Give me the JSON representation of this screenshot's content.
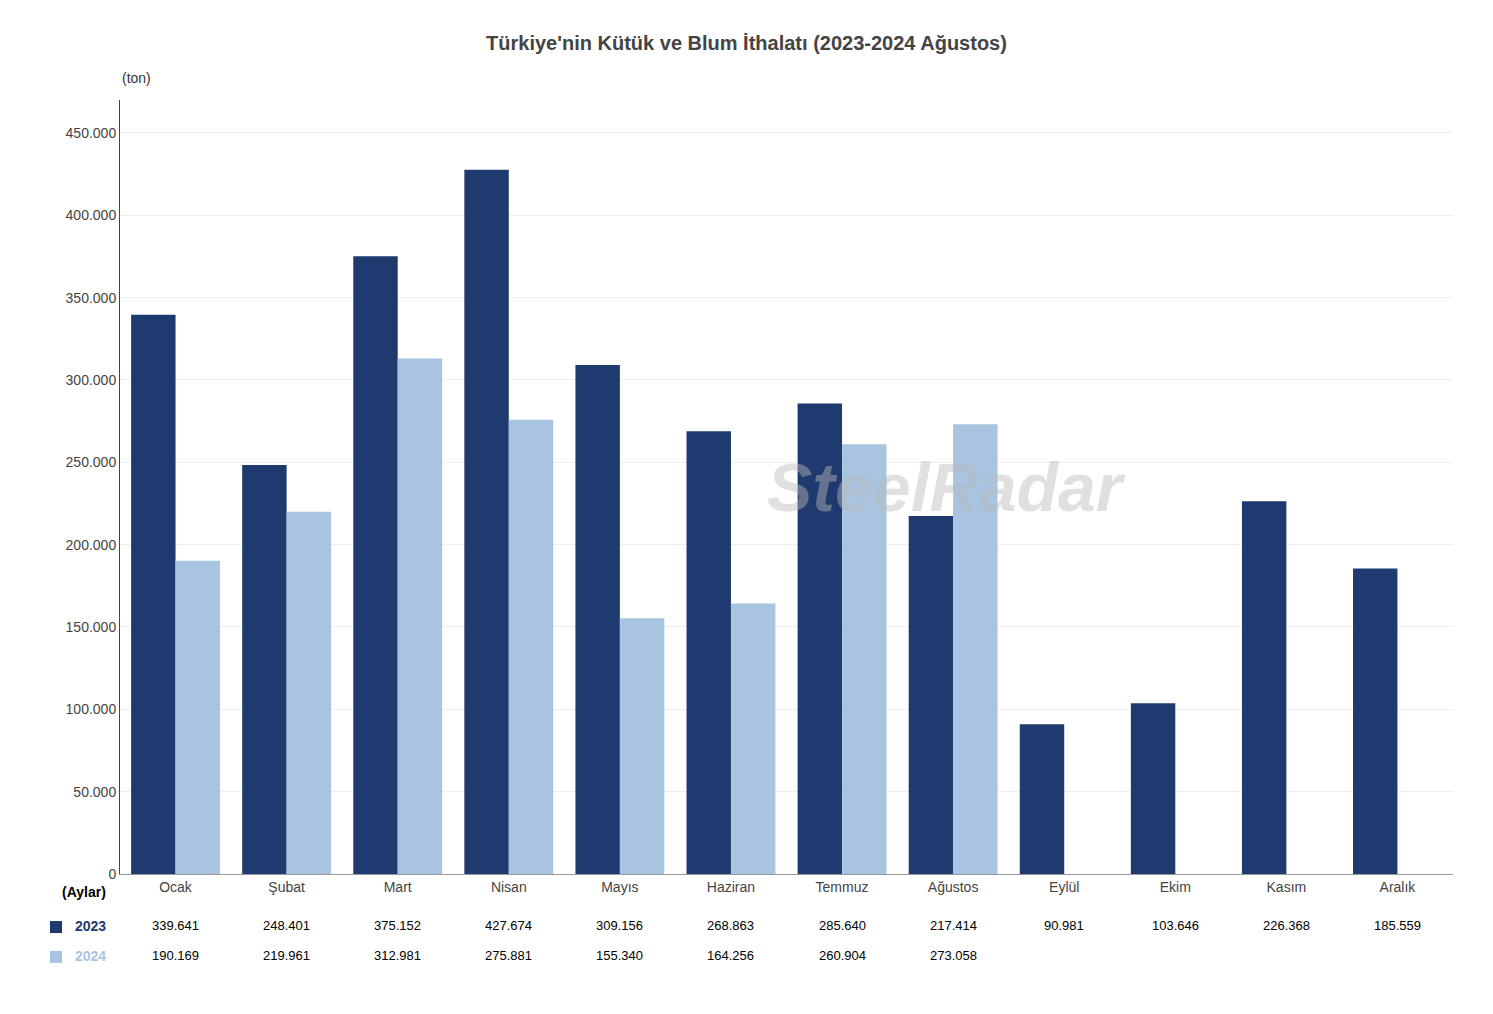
{
  "chart_data": {
    "type": "bar",
    "title": "Türkiye'nin Kütük ve Blum İthalatı (2023-2024 Ağustos)",
    "xlabel": "(Aylar)",
    "ylabel": "(ton)",
    "categories": [
      "Ocak",
      "Şubat",
      "Mart",
      "Nisan",
      "Mayıs",
      "Haziran",
      "Temmuz",
      "Ağustos",
      "Eylül",
      "Ekim",
      "Kasım",
      "Aralık"
    ],
    "series": [
      {
        "name": "2023",
        "color": "#1F3A6E",
        "values": [
          339641,
          248401,
          375152,
          427674,
          309156,
          268863,
          285640,
          217414,
          90981,
          103646,
          226368,
          185559
        ],
        "value_labels": [
          "339.641",
          "248.401",
          "375.152",
          "427.674",
          "309.156",
          "268.863",
          "285.640",
          "217.414",
          "90.981",
          "103.646",
          "226.368",
          "185.559"
        ]
      },
      {
        "name": "2024",
        "color": "#A8C4E0",
        "values": [
          190169,
          219961,
          312981,
          275881,
          155340,
          164256,
          260904,
          273058,
          null,
          null,
          null,
          null
        ],
        "value_labels": [
          "190.169",
          "219.961",
          "312.981",
          "275.881",
          "155.340",
          "164.256",
          "260.904",
          "273.058",
          null,
          null,
          null,
          null
        ]
      }
    ],
    "ylim": [
      0,
      470000
    ],
    "yticks": [
      0,
      {
        "value": 50000,
        "label": "50.000"
      },
      {
        "value": 100000,
        "label": "100.000"
      },
      {
        "value": 150000,
        "label": "150.000"
      },
      {
        "value": 200000,
        "label": "200.000"
      },
      {
        "value": 250000,
        "label": "250.000"
      },
      {
        "value": 300000,
        "label": "300.000"
      },
      {
        "value": 350000,
        "label": "350.000"
      },
      {
        "value": 400000,
        "label": "400.000"
      },
      {
        "value": 450000,
        "label": "450.000"
      }
    ],
    "grid": true,
    "annotations": [
      "SteelRadar"
    ]
  }
}
